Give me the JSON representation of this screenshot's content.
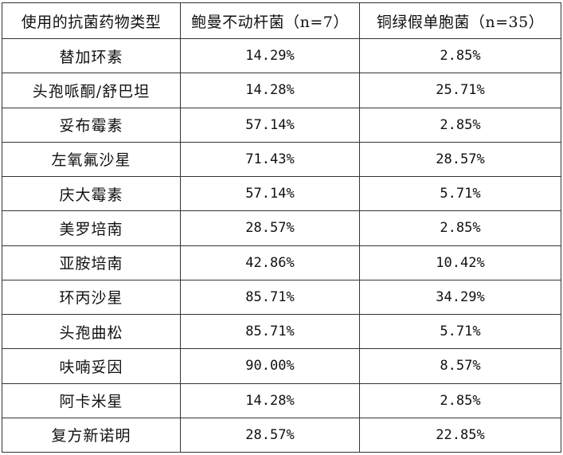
{
  "table": {
    "headers": [
      "使用的抗菌药物类型",
      "鲍曼不动杆菌（n=7）",
      "铜绿假单胞菌（n=35）"
    ],
    "rows": [
      {
        "drug": "替加环素",
        "ab": "14.29%",
        "pa": "2.85%"
      },
      {
        "drug": "头孢哌酮/舒巴坦",
        "ab": "14.28%",
        "pa": "25.71%"
      },
      {
        "drug": "妥布霉素",
        "ab": "57.14%",
        "pa": "2.85%"
      },
      {
        "drug": "左氧氟沙星",
        "ab": "71.43%",
        "pa": "28.57%"
      },
      {
        "drug": "庆大霉素",
        "ab": "57.14%",
        "pa": "5.71%"
      },
      {
        "drug": "美罗培南",
        "ab": "28.57%",
        "pa": "2.85%"
      },
      {
        "drug": "亚胺培南",
        "ab": "42.86%",
        "pa": "10.42%"
      },
      {
        "drug": "环丙沙星",
        "ab": "85.71%",
        "pa": "34.29%"
      },
      {
        "drug": "头孢曲松",
        "ab": "85.71%",
        "pa": "5.71%"
      },
      {
        "drug": "呋喃妥因",
        "ab": "90.00%",
        "pa": "8.57%"
      },
      {
        "drug": "阿卡米星",
        "ab": "14.28%",
        "pa": "2.85%"
      },
      {
        "drug": "复方新诺明",
        "ab": "28.57%",
        "pa": "22.85%"
      }
    ]
  }
}
